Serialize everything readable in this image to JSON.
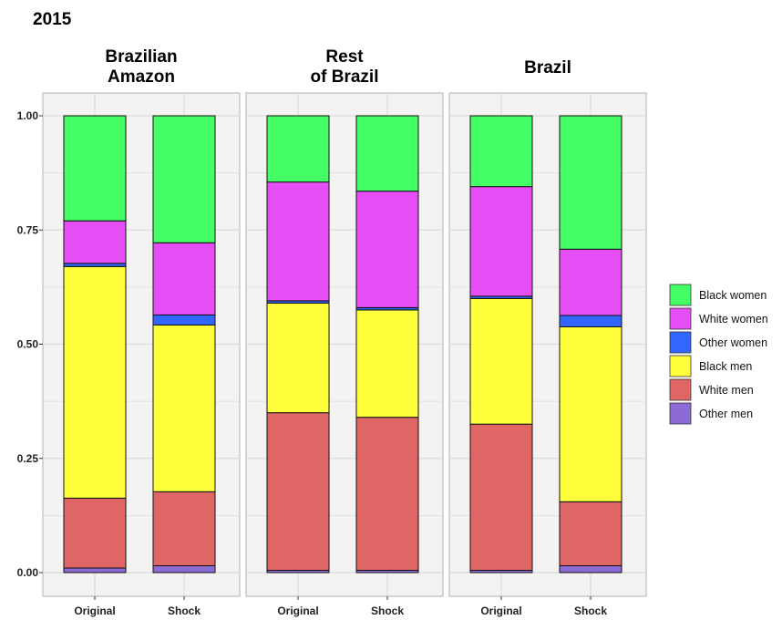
{
  "chart_data": {
    "type": "bar",
    "stacked": true,
    "title": "2015",
    "panels": [
      {
        "title_lines": [
          "Brazilian",
          "Amazon"
        ]
      },
      {
        "title_lines": [
          "Rest",
          "of Brazil"
        ]
      },
      {
        "title_lines": [
          "Brazil"
        ]
      }
    ],
    "categories": [
      "Original",
      "Shock"
    ],
    "ylim": [
      0,
      1
    ],
    "yticks": [
      "0.00",
      "0.25",
      "0.50",
      "0.75",
      "1.00"
    ],
    "grid": true,
    "legend_position": "right",
    "series": [
      {
        "name": "Other men",
        "color": "#8d6bd6",
        "values": [
          [
            0.01,
            0.015
          ],
          [
            0.005,
            0.005
          ],
          [
            0.005,
            0.015
          ]
        ]
      },
      {
        "name": "White men",
        "color": "#e06666",
        "values": [
          [
            0.153,
            0.162
          ],
          [
            0.345,
            0.335
          ],
          [
            0.32,
            0.14
          ]
        ]
      },
      {
        "name": "Black men",
        "color": "#ffff3c",
        "values": [
          [
            0.507,
            0.365
          ],
          [
            0.24,
            0.235
          ],
          [
            0.275,
            0.383
          ]
        ]
      },
      {
        "name": "Other women",
        "color": "#3366ff",
        "values": [
          [
            0.007,
            0.022
          ],
          [
            0.005,
            0.005
          ],
          [
            0.005,
            0.025
          ]
        ]
      },
      {
        "name": "White women",
        "color": "#e64ef5",
        "values": [
          [
            0.093,
            0.158
          ],
          [
            0.26,
            0.255
          ],
          [
            0.24,
            0.145
          ]
        ]
      },
      {
        "name": "Black women",
        "color": "#44ff66",
        "values": [
          [
            0.23,
            0.278
          ],
          [
            0.145,
            0.165
          ],
          [
            0.155,
            0.292
          ]
        ]
      }
    ],
    "legend_order": [
      "Black women",
      "White women",
      "Other women",
      "Black men",
      "White men",
      "Other men"
    ]
  }
}
